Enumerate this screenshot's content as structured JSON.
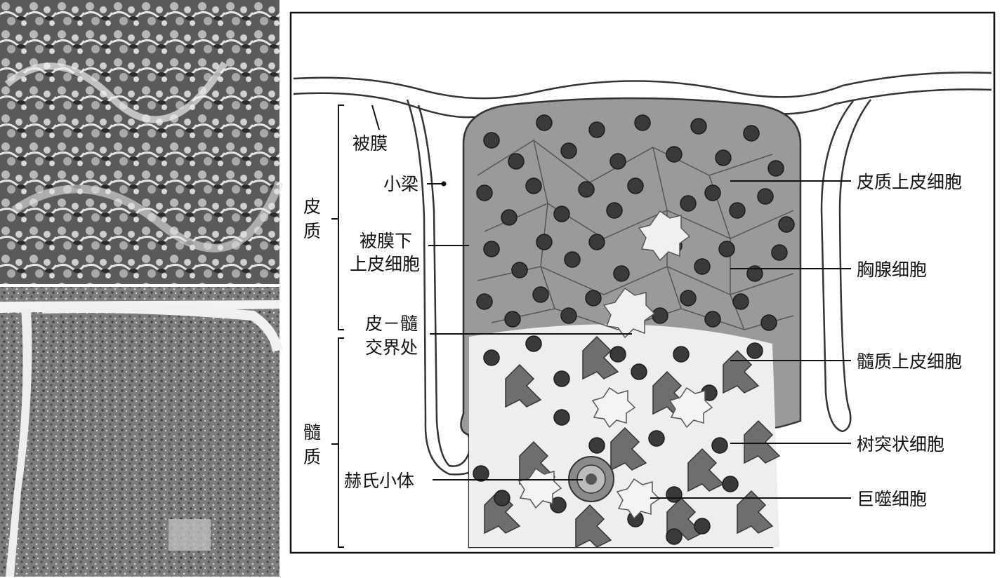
{
  "figure": {
    "labels": {
      "capsule": "被膜",
      "trabecula": "小梁",
      "cortex_line1": "皮",
      "cortex_line2": "质",
      "subcapsular_line1": "被膜下",
      "subcapsular_line2": "上皮细胞",
      "cmj_line1": "皮－髓",
      "cmj_line2": "交界处",
      "medulla_line1": "髓",
      "medulla_line2": "质",
      "hassall": "赫氏小体",
      "cortical_epithelial": "皮质上皮细胞",
      "thymocyte": "胸腺细胞",
      "medullary_epithelial": "髓质上皮细胞",
      "dendritic": "树突状细胞",
      "macrophage": "巨噬细胞"
    }
  },
  "palette": {
    "outline": "#333333",
    "lobule_fill": "#9a9a9a",
    "cell_dark": "#3a3a3a",
    "cell_nucleus": "#1c1c1c",
    "medulla_fill": "#ededed",
    "epithelial": "#6e6e6e"
  }
}
